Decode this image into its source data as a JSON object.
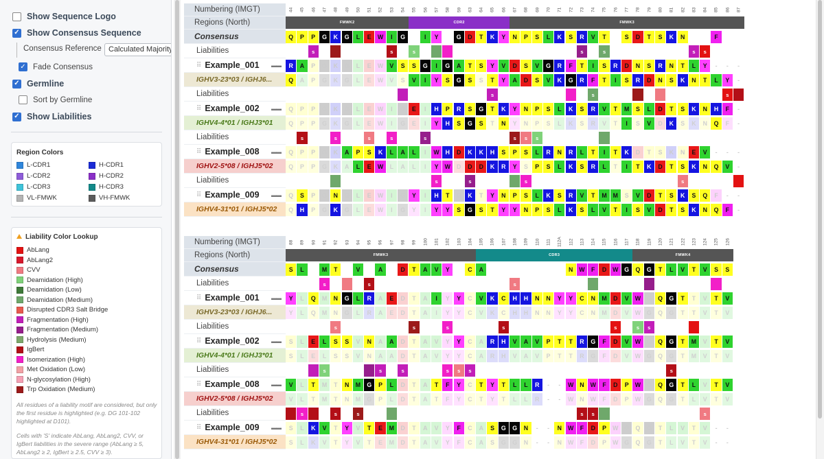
{
  "sidebar": {
    "options": [
      {
        "label": "Show Sequence Logo",
        "checked": false
      },
      {
        "label": "Show Consensus Sequence",
        "checked": true
      },
      {
        "label": "Fade Consensus",
        "checked": true
      },
      {
        "label": "Germline",
        "checked": true
      },
      {
        "label": "Sort by Germline",
        "checked": false
      },
      {
        "label": "Show Liabilities",
        "checked": true
      }
    ],
    "consensus_reference_label": "Consensus Reference",
    "consensus_reference_value": "Calculated Majority",
    "region_colors_title": "Region Colors",
    "region_colors": [
      {
        "label": "L-CDR1",
        "color": "#2f86dc"
      },
      {
        "label": "H-CDR1",
        "color": "#1a2bd6"
      },
      {
        "label": "L-CDR2",
        "color": "#8e5cd9"
      },
      {
        "label": "H-CDR2",
        "color": "#8a2fc7"
      },
      {
        "label": "L-CDR3",
        "color": "#3fc3d9"
      },
      {
        "label": "H-CDR3",
        "color": "#138a8a"
      },
      {
        "label": "VL-FMWK",
        "color": "#b4b4b4"
      },
      {
        "label": "VH-FMWK",
        "color": "#5c5c5c"
      }
    ],
    "liability_title": "Liability Color Lookup",
    "liabilities": [
      {
        "label": "AbLang",
        "color": "#e31212"
      },
      {
        "label": "AbLang2",
        "color": "#d8182c"
      },
      {
        "label": "CVV",
        "color": "#f07a82"
      },
      {
        "label": "Deamidation (High)",
        "color": "#7fd27a"
      },
      {
        "label": "Deamidation (Low)",
        "color": "#3f7a3a"
      },
      {
        "label": "Deamidation (Medium)",
        "color": "#6fa86b"
      },
      {
        "label": "Disrupted CDR3 Salt Bridge",
        "color": "#e8594e"
      },
      {
        "label": "Fragmentation (High)",
        "color": "#c21eb9"
      },
      {
        "label": "Fragmentation (Medium)",
        "color": "#961e8c"
      },
      {
        "label": "Hydrolysis (Medium)",
        "color": "#7ea86b"
      },
      {
        "label": "IgBert",
        "color": "#b30f17"
      },
      {
        "label": "Isomerization (High)",
        "color": "#f21fc8"
      },
      {
        "label": "Met Oxidation (Low)",
        "color": "#f2a1a6"
      },
      {
        "label": "N-glycosylation (High)",
        "color": "#f5a0b4"
      },
      {
        "label": "Trp Oxidation (Medium)",
        "color": "#9c1a1a"
      }
    ],
    "note1": "All residues of a liability motif are considered, but only the first residue is highlighted (e.g. DG 101-102 highlighted at D101).",
    "note2": "Cells with 'S' indicate AbLang, AbLang2, CVV, or IgBert liabilities in the severe range (AbLang ≥ 5, AbLang2 ≥ 2, IgBert ≥ 2.5, CVV ≥ 3)."
  },
  "labels": {
    "numbering": "Numbering (IMGT)",
    "regions": "Regions (North)",
    "consensus": "Consensus",
    "liabilities": "Liabilities"
  },
  "colors": {
    "A": "#2fd32f",
    "I": "#2fd32f",
    "L": "#2fd32f",
    "M": "#2fd32f",
    "F": "#f020f0",
    "W": "#f020f0",
    "V": "#2fd32f",
    "S": "#ffff20",
    "T": "#ffff20",
    "Y": "#ff40ff",
    "N": "#ffff20",
    "Q": "#ffff20",
    "C": "#ffff20",
    "D": "#e81818",
    "E": "#e81818",
    "K": "#1515e0",
    "R": "#1515e0",
    "H": "#1515e0",
    "G": "#050505",
    "P": "#ffff20",
    "-": "#ffffff"
  },
  "blocks": [
    {
      "numbers": [
        "44",
        "45",
        "46",
        "47",
        "48",
        "49",
        "50",
        "51",
        "52",
        "53",
        "54",
        "55",
        "56",
        "57",
        "58",
        "59",
        "63",
        "64",
        "65",
        "66",
        "67",
        "68",
        "69",
        "70",
        "71",
        "72",
        "73",
        "74",
        "75",
        "76",
        "77",
        "78",
        "79",
        "80",
        "81",
        "82",
        "83",
        "84",
        "85",
        "86",
        "87"
      ],
      "regions": [
        {
          "label": "FMWK2",
          "span": 11,
          "color": "#555555"
        },
        {
          "label": "CDR2",
          "span": 9,
          "color": "#8a2fc7"
        },
        {
          "label": "FMWK3",
          "span": 21,
          "color": "#555555"
        }
      ],
      "consensus": "QPPGKGLEWIG-IY-GDTKYNPSLKSRVT-SDTSKN--F",
      "sequences": [
        {
          "name": "Example_001",
          "germline": "IGHV3-23*03 / IGHJ6...",
          "germline_bg": "#ede8d4",
          "germline_color": "#7a6a2a",
          "seq": "RAPGKGLEWVSSGIGATSYVDSVGRFTISRDNSRNTLY",
          "germ_seq": "QAPGKGLEWVSVIYSGSSTYADSVKGRFTISRDNSKNTLY",
          "liab": [
            [
              0,
              "s"
            ],
            [
              10,
              "",
              ""
            ],
            [
              13,
              "s"
            ],
            [
              15,
              ""
            ]
          ]
        },
        {
          "name": "Example_002",
          "germline": "IGHV4-4*01 / IGHJ3*01",
          "germline_bg": "#e4f0d4",
          "germline_color": "#4a7a1a",
          "seq": "QPPGKGLEWIGEIHPRSGTKYNPSLKSRVTMSLDTSKNHF",
          "germ_seq": "QPPGKGLEWIGEIYHSGSTNYNPSLKSRVTISVDKSKNQF"
        },
        {
          "name": "Example_008",
          "germline": "IGHV2-5*08 / IGHJ5*02",
          "germline_bg": "#f6cfcd",
          "germline_color": "#a01414",
          "seq": "QPPGKAPSKLALIWHDKKHSPSLRNRLTITKDTSKNEV",
          "germ_seq": "QPPGKALEWLALIYWDDDKRYSPSLKSRLTITKDTSKNQV"
        },
        {
          "name": "Example_009",
          "germline": "IGHV4-31*01 / IGHJ5*02",
          "germline_bg": "#fbe2c4",
          "germline_color": "#9a5a08",
          "seq": "QSPGNGLEWIGYIHTGKTYNPSLKSRVTMMSVDTSKSQF",
          "germ_seq": "QHPGKGLEWIGYIYYSGSTYYNPSLKSLVTISVDTSKNQF"
        }
      ]
    },
    {
      "numbers": [
        "88",
        "89",
        "90",
        "91",
        "92",
        "93",
        "94",
        "95",
        "96",
        "97",
        "98",
        "99",
        "100",
        "101",
        "102",
        "103",
        "104",
        "105",
        "106",
        "107",
        "108",
        "109",
        "110",
        "111",
        "112A",
        "112",
        "113",
        "114",
        "115",
        "116",
        "117",
        "118",
        "119",
        "120",
        "121",
        "122",
        "123",
        "124",
        "125",
        "126"
      ],
      "regions": [
        {
          "label": "FMWK3",
          "span": 17,
          "color": "#555555"
        },
        {
          "label": "CDR3",
          "span": 14,
          "color": "#138a8a"
        },
        {
          "label": "FMWK4",
          "span": 9,
          "color": "#555555"
        }
      ],
      "consensus": "SL-MT-V-A-DTAVY-CA-------NWFDWGQGTLVTVSS",
      "sequences": [
        {
          "name": "Example_001",
          "germline": "IGHV3-23*03 / IGHJ6...",
          "germline_bg": "#ede8d4",
          "germline_color": "#7a6a2a",
          "seq": "YLQMNGLRAEDTAIYYCVKCHHNNYYCNMDVWGQGTTVTV"
        },
        {
          "name": "Example_002",
          "germline": "IGHV4-4*01 / IGHJ3*01",
          "germline_bg": "#e4f0d4",
          "germline_color": "#4a7a1a",
          "seq": "SLELSSVNAADTAVYYCARHVAVPTTRGFDVWGQGTMVTV"
        },
        {
          "name": "Example_008",
          "germline": "IGHV2-5*08 / IGHJ5*02",
          "germline_bg": "#f6cfcd",
          "germline_color": "#a01414",
          "seq": "VLTMTNMGPLDTATFYCTYTLLR--WNWFDPWGQGTLVTV"
        },
        {
          "name": "Example_009",
          "germline": "IGHV4-31*01 / IGHJ5*02",
          "germline_bg": "#fbe2c4",
          "germline_color": "#9a5a08",
          "seq": "SLKVTYVTEMDTAVYFCASGGN--NWFDPWGQGTLVTV"
        }
      ]
    }
  ]
}
